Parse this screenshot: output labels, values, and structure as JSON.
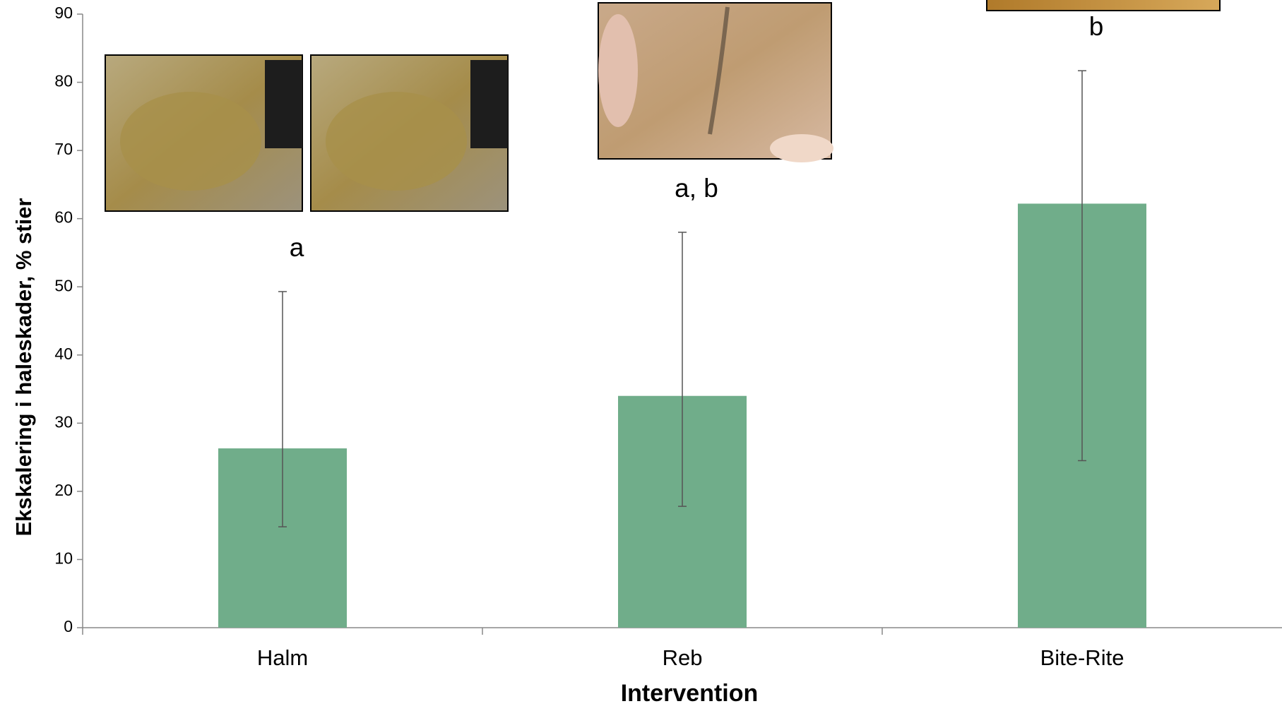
{
  "chart_data": {
    "type": "bar",
    "x_label": "Intervention",
    "y_label": "Ekskalering i haleskader, % stier",
    "categories": [
      "Halm",
      "Reb",
      "Bite-Rite"
    ],
    "values": [
      26.3,
      34,
      62.2
    ],
    "lower": [
      14.8,
      17.8,
      24.5
    ],
    "upper": [
      49.3,
      58,
      81.7
    ],
    "annotations": [
      "a",
      "a, b",
      "b"
    ],
    "color": "#70ad8a",
    "ylim": [
      0,
      90
    ],
    "yticks": [
      0,
      10,
      20,
      30,
      40,
      50,
      60,
      70,
      80,
      90
    ],
    "grid": false
  }
}
